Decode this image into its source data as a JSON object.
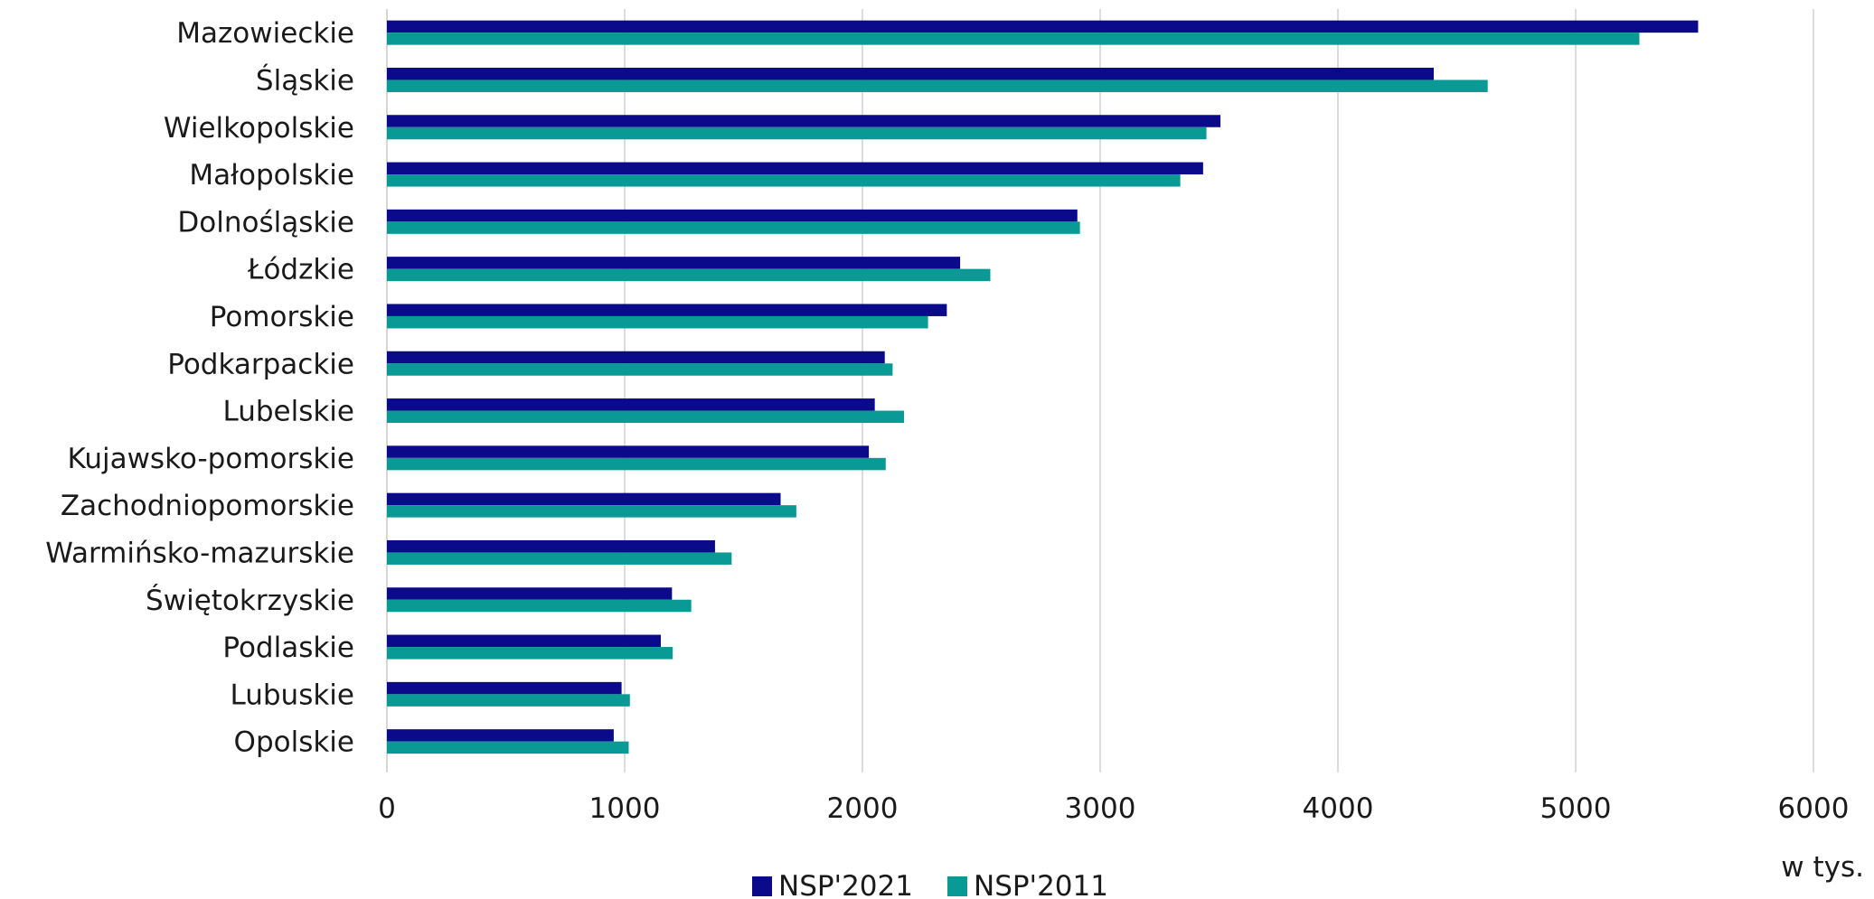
{
  "chart_data": {
    "type": "bar",
    "orientation": "horizontal",
    "categories": [
      "Mazowieckie",
      "Śląskie",
      "Wielkopolskie",
      "Małopolskie",
      "Dolnośląskie",
      "Łódzkie",
      "Pomorskie",
      "Podkarpackie",
      "Lubelskie",
      "Kujawsko-pomorskie",
      "Zachodniopomorskie",
      "Warmińsko-mazurskie",
      "Świętokrzyskie",
      "Podlaskie",
      "Lubuskie",
      "Opolskie"
    ],
    "series": [
      {
        "name": "NSP'2021",
        "color": "#0a0a8a",
        "values": [
          5515,
          4403,
          3506,
          3433,
          2904,
          2411,
          2355,
          2094,
          2052,
          2027,
          1656,
          1380,
          1199,
          1152,
          987,
          954
        ]
      },
      {
        "name": "NSP'2011",
        "color": "#0a9a96",
        "values": [
          5268,
          4630,
          3447,
          3337,
          2915,
          2538,
          2276,
          2127,
          2175,
          2098,
          1722,
          1450,
          1280,
          1202,
          1022,
          1017
        ]
      }
    ],
    "xlim": [
      0,
      6000
    ],
    "xticks": [
      0,
      1000,
      2000,
      3000,
      4000,
      5000,
      6000
    ],
    "unit_label": "w tys.",
    "grid": true,
    "legend_position": "bottom-center"
  }
}
